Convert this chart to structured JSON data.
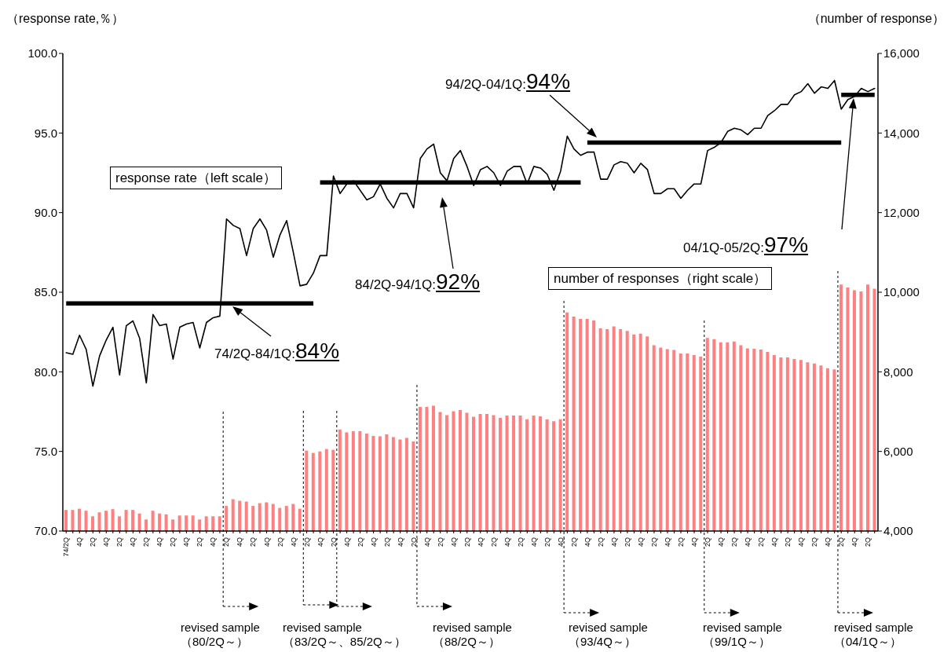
{
  "chart_data": {
    "type": "bar",
    "ylabel": "（response rate,％）",
    "y2label": "（number of response）",
    "categories": [
      "74/2Q",
      null,
      "4Q",
      null,
      "2Q",
      null,
      "4Q",
      null,
      "2Q",
      null,
      "4Q",
      null,
      "2Q",
      null,
      "4Q",
      null,
      "2Q",
      null,
      "4Q",
      null,
      "2Q",
      null,
      "4Q",
      null,
      "2Q",
      null,
      "4Q",
      null,
      "2Q",
      null,
      "4Q",
      null,
      "2Q",
      null,
      "4Q",
      null,
      "2Q",
      null,
      "4Q",
      null,
      "2Q",
      null,
      "4Q",
      null,
      "2Q",
      null,
      "4Q",
      null,
      "2Q",
      null,
      "4Q",
      null,
      "2Q",
      null,
      "4Q",
      null,
      "2Q",
      null,
      "4Q",
      null,
      "2Q",
      null,
      "4Q",
      null,
      "2Q",
      null,
      "4Q",
      null,
      "2Q",
      null,
      "4Q",
      null,
      "2Q",
      null,
      "4Q",
      null,
      "2Q",
      null,
      "4Q",
      null,
      "2Q",
      null,
      "4Q",
      null,
      "2Q",
      null,
      "4Q",
      null,
      "2Q",
      null,
      "4Q",
      null,
      "2Q",
      null,
      "4Q",
      null,
      "2Q",
      null,
      "4Q",
      null,
      "2Q",
      null,
      "4Q",
      null,
      "2Q",
      null,
      "4Q",
      null,
      "2Q",
      null,
      "4Q",
      null,
      "2Q",
      null,
      "4Q",
      null,
      "2Q",
      null,
      "4Q",
      null,
      "2Q",
      null
    ],
    "series": [
      {
        "axis": "y2",
        "name": "number of responses（right scale）",
        "color": "#ff8080",
        "values": [
          4530,
          4530,
          4560,
          4510,
          4370,
          4470,
          4510,
          4550,
          4370,
          4530,
          4530,
          4440,
          4290,
          4510,
          4440,
          4420,
          4290,
          4390,
          4390,
          4390,
          4290,
          4370,
          4370,
          4370,
          4630,
          4800,
          4760,
          4740,
          4630,
          4700,
          4720,
          4680,
          4580,
          4630,
          4680,
          4560,
          6020,
          5960,
          6000,
          6060,
          6040,
          6550,
          6480,
          6510,
          6510,
          6450,
          6390,
          6380,
          6430,
          6360,
          6300,
          6340,
          6250,
          7120,
          7120,
          7150,
          6990,
          6910,
          7010,
          7040,
          6970,
          6870,
          6940,
          6940,
          6910,
          6840,
          6900,
          6900,
          6900,
          6810,
          6900,
          6880,
          6810,
          6760,
          6810,
          9490,
          9390,
          9330,
          9330,
          9290,
          9090,
          9070,
          9140,
          9070,
          9030,
          8940,
          8960,
          8890,
          8670,
          8610,
          8570,
          8550,
          8460,
          8460,
          8420,
          8380,
          8850,
          8820,
          8740,
          8740,
          8760,
          8670,
          8590,
          8580,
          8560,
          8500,
          8420,
          8360,
          8360,
          8320,
          8300,
          8240,
          8210,
          8160,
          8090,
          8060,
          10190,
          10120,
          10050,
          10020,
          10190,
          10090
        ]
      },
      {
        "type": "line",
        "axis": "y",
        "name": "response rate（left scale）",
        "color": "#000000",
        "values": [
          81.2,
          81.1,
          82.3,
          81.4,
          79.1,
          81.0,
          82.0,
          82.8,
          79.8,
          82.9,
          83.2,
          82.1,
          79.3,
          83.6,
          82.9,
          83.0,
          80.8,
          82.8,
          83.0,
          83.1,
          81.5,
          83.1,
          83.4,
          83.5,
          89.6,
          89.2,
          89.0,
          87.3,
          89.0,
          89.6,
          88.9,
          87.2,
          88.6,
          89.5,
          87.5,
          85.4,
          85.5,
          86.2,
          87.3,
          87.3,
          92.3,
          91.2,
          91.8,
          92.0,
          91.4,
          90.8,
          91.0,
          91.8,
          90.9,
          90.3,
          91.2,
          91.2,
          90.3,
          93.4,
          94.0,
          94.3,
          92.5,
          92.0,
          93.4,
          93.9,
          92.9,
          91.7,
          92.7,
          92.9,
          92.5,
          91.7,
          92.6,
          92.9,
          92.9,
          91.8,
          92.9,
          92.8,
          92.4,
          91.4,
          92.6,
          94.8,
          94.0,
          93.6,
          93.8,
          93.8,
          92.1,
          92.1,
          93.0,
          93.2,
          93.1,
          92.5,
          93.1,
          92.7,
          91.2,
          91.2,
          91.5,
          91.5,
          90.9,
          91.4,
          91.8,
          91.8,
          93.9,
          94.1,
          94.4,
          95.1,
          95.3,
          95.2,
          94.9,
          95.3,
          95.3,
          96.1,
          96.4,
          96.8,
          96.8,
          97.4,
          97.6,
          98.1,
          97.5,
          97.9,
          97.8,
          98.3,
          96.5,
          97.1,
          97.3,
          97.8,
          97.6,
          97.8
        ]
      },
      {
        "type": "line",
        "axis": "y",
        "color": "#000000",
        "values": [
          84.3,
          84.3,
          84.3,
          84.3,
          84.3,
          84.3,
          84.3,
          84.3,
          84.3,
          84.3,
          84.3,
          84.3,
          84.3,
          84.3,
          84.3,
          84.3,
          84.3,
          84.3,
          84.3,
          84.3,
          84.3,
          84.3,
          84.3,
          84.3,
          84.3,
          84.3,
          84.3,
          84.3,
          84.3,
          84.3,
          84.3,
          84.3,
          84.3,
          84.3,
          84.3,
          84.3,
          84.3,
          84.3,
          null,
          null,
          null,
          null,
          null,
          null,
          null,
          null,
          null,
          null,
          null,
          null,
          null,
          null,
          null,
          null,
          null,
          null,
          null,
          null,
          null,
          null,
          null,
          null,
          null,
          null,
          null,
          null,
          null,
          null,
          null,
          null,
          null,
          null,
          null,
          null,
          null,
          null,
          null,
          null,
          null,
          null,
          null,
          null,
          null,
          null,
          null,
          null,
          null,
          null,
          null,
          null,
          null,
          null,
          null,
          null,
          null,
          null,
          null,
          null,
          null,
          null,
          null,
          null,
          null,
          null,
          null,
          null,
          null,
          null,
          null,
          null,
          null,
          null,
          null,
          null,
          null,
          null,
          null,
          null,
          null,
          null,
          null,
          null
        ]
      },
      {
        "type": "line",
        "axis": "y",
        "color": "#000000",
        "values": [
          null,
          null,
          null,
          null,
          null,
          null,
          null,
          null,
          null,
          null,
          null,
          null,
          null,
          null,
          null,
          null,
          null,
          null,
          null,
          null,
          null,
          null,
          null,
          null,
          null,
          null,
          null,
          null,
          null,
          null,
          null,
          null,
          null,
          null,
          null,
          null,
          null,
          null,
          91.9,
          91.9,
          91.9,
          91.9,
          91.9,
          91.9,
          91.9,
          91.9,
          91.9,
          91.9,
          91.9,
          91.9,
          91.9,
          91.9,
          91.9,
          91.9,
          91.9,
          91.9,
          91.9,
          91.9,
          91.9,
          91.9,
          91.9,
          91.9,
          91.9,
          91.9,
          91.9,
          91.9,
          91.9,
          91.9,
          91.9,
          91.9,
          91.9,
          91.9,
          91.9,
          91.9,
          91.9,
          91.9,
          91.9,
          91.9,
          null,
          null,
          null,
          null,
          null,
          null,
          null,
          null,
          null,
          null,
          null,
          null,
          null,
          null,
          null,
          null,
          null,
          null,
          null,
          null,
          null,
          null,
          null,
          null,
          null,
          null,
          null,
          null,
          null,
          null,
          null,
          null,
          null,
          null,
          null,
          null,
          null,
          null,
          null,
          null,
          null,
          null,
          null,
          null
        ]
      },
      {
        "type": "line",
        "axis": "y",
        "color": "#000000",
        "values": [
          null,
          null,
          null,
          null,
          null,
          null,
          null,
          null,
          null,
          null,
          null,
          null,
          null,
          null,
          null,
          null,
          null,
          null,
          null,
          null,
          null,
          null,
          null,
          null,
          null,
          null,
          null,
          null,
          null,
          null,
          null,
          null,
          null,
          null,
          null,
          null,
          null,
          null,
          null,
          null,
          null,
          null,
          null,
          null,
          null,
          null,
          null,
          null,
          null,
          null,
          null,
          null,
          null,
          null,
          null,
          null,
          null,
          null,
          null,
          null,
          null,
          null,
          null,
          null,
          null,
          null,
          null,
          null,
          null,
          null,
          null,
          null,
          null,
          null,
          null,
          null,
          null,
          null,
          94.4,
          94.4,
          94.4,
          94.4,
          94.4,
          94.4,
          94.4,
          94.4,
          94.4,
          94.4,
          94.4,
          94.4,
          94.4,
          94.4,
          94.4,
          94.4,
          94.4,
          94.4,
          94.4,
          94.4,
          94.4,
          94.4,
          94.4,
          94.4,
          94.4,
          94.4,
          94.4,
          94.4,
          94.4,
          94.4,
          94.4,
          94.4,
          94.4,
          94.4,
          94.4,
          94.4,
          94.4,
          94.4,
          94.4,
          null,
          null,
          null,
          null,
          null
        ]
      },
      {
        "type": "line",
        "axis": "y",
        "color": "#000000",
        "values": [
          null,
          null,
          null,
          null,
          null,
          null,
          null,
          null,
          null,
          null,
          null,
          null,
          null,
          null,
          null,
          null,
          null,
          null,
          null,
          null,
          null,
          null,
          null,
          null,
          null,
          null,
          null,
          null,
          null,
          null,
          null,
          null,
          null,
          null,
          null,
          null,
          null,
          null,
          null,
          null,
          null,
          null,
          null,
          null,
          null,
          null,
          null,
          null,
          null,
          null,
          null,
          null,
          null,
          null,
          null,
          null,
          null,
          null,
          null,
          null,
          null,
          null,
          null,
          null,
          null,
          null,
          null,
          null,
          null,
          null,
          null,
          null,
          null,
          null,
          null,
          null,
          null,
          null,
          null,
          null,
          null,
          null,
          null,
          null,
          null,
          null,
          null,
          null,
          null,
          null,
          null,
          null,
          null,
          null,
          null,
          null,
          null,
          null,
          null,
          null,
          null,
          null,
          null,
          null,
          null,
          null,
          null,
          null,
          null,
          null,
          null,
          null,
          null,
          null,
          null,
          null,
          97.4,
          97.4,
          97.4,
          97.4,
          97.4,
          97.4
        ]
      }
    ],
    "ylim": [
      70,
      100
    ],
    "yticks": [
      {
        "value": 70,
        "label": "70.0"
      },
      {
        "value": 75,
        "label": "75.0"
      },
      {
        "value": 80,
        "label": "80.0"
      },
      {
        "value": 85,
        "label": "85.0"
      },
      {
        "value": 90,
        "label": "90.0"
      },
      {
        "value": 95,
        "label": "95.0"
      },
      {
        "value": 100,
        "label": "100.0"
      }
    ],
    "y2lim": [
      4000,
      16000
    ],
    "y2ticks": [
      {
        "value": 4000,
        "label": "4,000"
      },
      {
        "value": 6000,
        "label": "6,000"
      },
      {
        "value": 8000,
        "label": "8,000"
      },
      {
        "value": 10000,
        "label": "10,000"
      },
      {
        "value": 12000,
        "label": "12,000"
      },
      {
        "value": 14000,
        "label": "14,000"
      },
      {
        "value": 16000,
        "label": "16,000"
      }
    ],
    "marker": "none",
    "annotations": [
      "74/2Q-84/1Q:84%",
      "84/2Q-94/1Q:92%",
      "94/2Q-04/1Q:94%",
      "04/1Q-05/2Q:97%",
      "revised sample （80/2Q～）",
      "revised sample （83/2Q～、85/2Q～）",
      "revised sample （88/2Q～）",
      "revised sample （93/4Q～）",
      "revised sample （99/1Q～）",
      "revised sample （04/1Q～）"
    ]
  }
}
